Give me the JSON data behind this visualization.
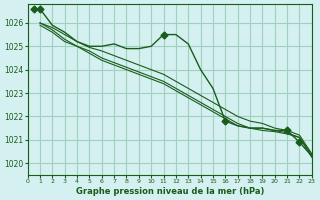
{
  "title": "Graphe pression niveau de la mer (hPa)",
  "bg_color": "#d4f0f0",
  "grid_color": "#a0d0c0",
  "line_color": "#1a5c1a",
  "xlim": [
    0,
    23
  ],
  "ylim": [
    1019.5,
    1026.8
  ],
  "yticks": [
    1020,
    1021,
    1022,
    1023,
    1024,
    1025,
    1026
  ],
  "xticks": [
    0,
    1,
    2,
    3,
    4,
    5,
    6,
    7,
    8,
    9,
    10,
    11,
    12,
    13,
    14,
    15,
    16,
    17,
    18,
    19,
    20,
    21,
    22,
    23
  ],
  "series": [
    [
      1026.6,
      1025.9,
      1025.6,
      1025.2,
      1025.0,
      1025.0,
      1025.1,
      1024.9,
      1024.9,
      1025.0,
      1025.5,
      1025.5,
      1025.1,
      1024.0,
      1023.2,
      1021.8,
      1021.6,
      1021.5,
      1021.5,
      1021.4,
      1021.4,
      1020.9,
      1020.3
    ],
    [
      1026.0,
      1025.8,
      1025.5,
      1025.2,
      1024.95,
      1024.8,
      1024.6,
      1024.4,
      1024.2,
      1024.0,
      1023.8,
      1023.5,
      1023.2,
      1022.9,
      1022.6,
      1022.3,
      1022.0,
      1021.8,
      1021.7,
      1021.5,
      1021.4,
      1021.2,
      1020.4
    ],
    [
      1026.0,
      1025.7,
      1025.3,
      1025.0,
      1024.8,
      1024.5,
      1024.3,
      1024.1,
      1023.9,
      1023.7,
      1023.5,
      1023.2,
      1022.9,
      1022.6,
      1022.3,
      1022.0,
      1021.7,
      1021.5,
      1021.5,
      1021.4,
      1021.3,
      1021.1,
      1020.35
    ],
    [
      1025.9,
      1025.6,
      1025.2,
      1025.0,
      1024.7,
      1024.4,
      1024.2,
      1024.0,
      1023.8,
      1023.6,
      1023.4,
      1023.1,
      1022.8,
      1022.5,
      1022.2,
      1021.9,
      1021.6,
      1021.5,
      1021.4,
      1021.35,
      1021.25,
      1021.1,
      1020.25
    ]
  ],
  "markers": [
    [
      true,
      false,
      false,
      false,
      false,
      false,
      false,
      false,
      false,
      false,
      false,
      true,
      false,
      false,
      false,
      false,
      true,
      false,
      false,
      false,
      false,
      true,
      true
    ],
    [
      false,
      false,
      false,
      false,
      false,
      false,
      false,
      false,
      false,
      false,
      false,
      false,
      false,
      false,
      false,
      false,
      false,
      false,
      false,
      false,
      false,
      false,
      false
    ],
    [
      false,
      false,
      false,
      false,
      false,
      false,
      false,
      false,
      false,
      false,
      false,
      false,
      false,
      false,
      false,
      false,
      false,
      false,
      false,
      false,
      false,
      false,
      false
    ],
    [
      false,
      false,
      false,
      false,
      false,
      false,
      false,
      false,
      false,
      false,
      false,
      false,
      false,
      false,
      false,
      false,
      false,
      false,
      false,
      false,
      false,
      false,
      false
    ]
  ]
}
